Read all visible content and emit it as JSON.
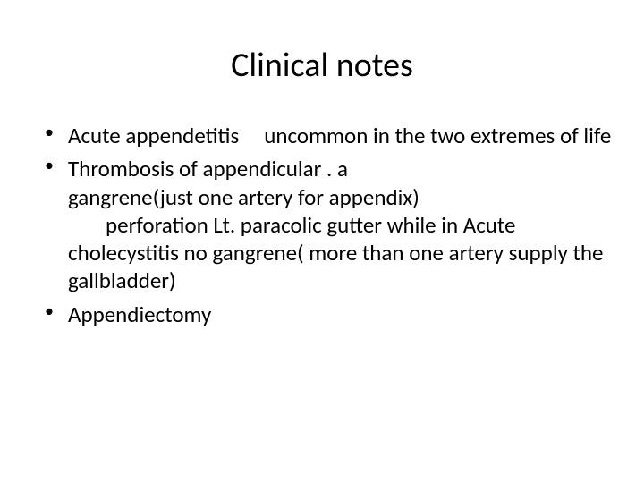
{
  "slide": {
    "title": "Clinical notes",
    "bullets": [
      {
        "segments": [
          "Acute appendetitis",
          "uncommon in the two extremes of life"
        ]
      },
      {
        "segments": [
          "Thrombosis of appendicular . a",
          "gangrene(just one artery for appendix)",
          "perforation    Lt. paracolic gutter while in Acute cholecystitis    no gangrene( more than one artery supply the gallbladder)"
        ]
      },
      {
        "segments": [
          "Appendiectomy"
        ]
      }
    ],
    "colors": {
      "background": "#ffffff",
      "text": "#000000"
    },
    "typography": {
      "title_fontsize": 38,
      "body_fontsize": 25,
      "font_family": "Calibri"
    }
  }
}
